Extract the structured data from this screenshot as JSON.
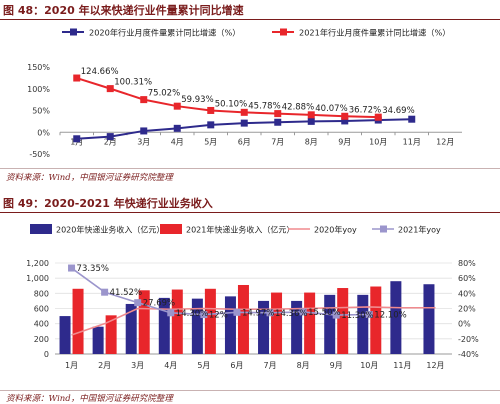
{
  "figure1": {
    "title": "图 48：2020 年以来快递行业件量累计同比增速",
    "source": "资料来源：Wind，中国银河证券研究院整理"
  },
  "figure2": {
    "title": "图 49：2020-2021 年快递行业业务收入",
    "source": "资料来源：Wind，中国银河证券研究院整理"
  },
  "colors": {
    "title_red": "#7a1c1c",
    "navy": "#2e2a8c",
    "red": "#e8262b",
    "light_pink": "#f08a8e",
    "lavender": "#9b95cc"
  },
  "chart_data": [
    {
      "type": "line",
      "title": "",
      "categories": [
        "1月",
        "2月",
        "3月",
        "4月",
        "5月",
        "6月",
        "7月",
        "8月",
        "9月",
        "10月",
        "11月",
        "12月"
      ],
      "ylim": [
        -50,
        150
      ],
      "yticks": [
        "-50%",
        "0%",
        "50%",
        "100%",
        "150%"
      ],
      "ytick_values": [
        -50,
        0,
        50,
        100,
        150
      ],
      "series": [
        {
          "name": "2020年行业月度件量累计同比增速（%）",
          "color": "#2e2a8c",
          "marker": "square",
          "values": [
            -15,
            -10,
            3,
            9,
            17,
            21,
            23,
            25,
            26,
            28,
            30,
            null
          ]
        },
        {
          "name": "2021年行业月度件量累计同比增速（%）",
          "color": "#e8262b",
          "marker": "square",
          "values": [
            124.66,
            100.31,
            75.02,
            59.93,
            50.1,
            45.78,
            42.88,
            40.07,
            36.72,
            34.69,
            null,
            null
          ],
          "labels": [
            "124.66%",
            "100.31%",
            "75.02%",
            "59.93%",
            "50.10%",
            "45.78%",
            "42.88%",
            "40.07%",
            "36.72%",
            "34.69%",
            "",
            ""
          ]
        }
      ],
      "grid": false,
      "legend": "top"
    },
    {
      "type": "bar",
      "title": "",
      "categories": [
        "1月",
        "2月",
        "3月",
        "4月",
        "5月",
        "6月",
        "7月",
        "8月",
        "9月",
        "10月",
        "11月",
        "12月"
      ],
      "ylim_left": [
        0,
        1200
      ],
      "yticks_left": [
        "0",
        "200",
        "400",
        "600",
        "800",
        "1,000",
        "1,200"
      ],
      "ytick_values_left": [
        0,
        200,
        400,
        600,
        800,
        1000,
        1200
      ],
      "ylim_right": [
        -40,
        80
      ],
      "yticks_right": [
        "-40%",
        "-20%",
        "0%",
        "20%",
        "40%",
        "60%",
        "80%"
      ],
      "ytick_values_right": [
        -40,
        -20,
        0,
        20,
        40,
        60,
        80
      ],
      "series": [
        {
          "name": "2020年快递业务收入（亿元）",
          "color": "#2e2a8c",
          "axis": "left",
          "values": [
            500,
            360,
            660,
            740,
            730,
            760,
            700,
            700,
            780,
            780,
            960,
            920
          ]
        },
        {
          "name": "2021年快递业务收入（亿元）",
          "color": "#e8262b",
          "axis": "left",
          "values": [
            860,
            510,
            840,
            850,
            860,
            910,
            810,
            810,
            870,
            890,
            null,
            null
          ]
        },
        {
          "name": "2020年yoy",
          "color": "#f08a8e",
          "axis": "right",
          "type": "line",
          "values": [
            -15,
            0,
            20,
            19,
            20,
            19,
            19,
            20,
            21,
            22,
            21,
            21
          ]
        },
        {
          "name": "2021年yoy",
          "color": "#9b95cc",
          "axis": "right",
          "type": "line",
          "marker": "square",
          "values": [
            73.35,
            41.52,
            27.69,
            14.3,
            12,
            14.97,
            14.36,
            15.5,
            11.3,
            12.1,
            null,
            null
          ],
          "labels": [
            "73.35%",
            "41.52%",
            "27.69%",
            "14.30%",
            "12%",
            "14.97%",
            "14.36%",
            "15.50%",
            "11.30%",
            "12.10%",
            "",
            ""
          ]
        }
      ],
      "grid": true,
      "legend": "top"
    }
  ]
}
